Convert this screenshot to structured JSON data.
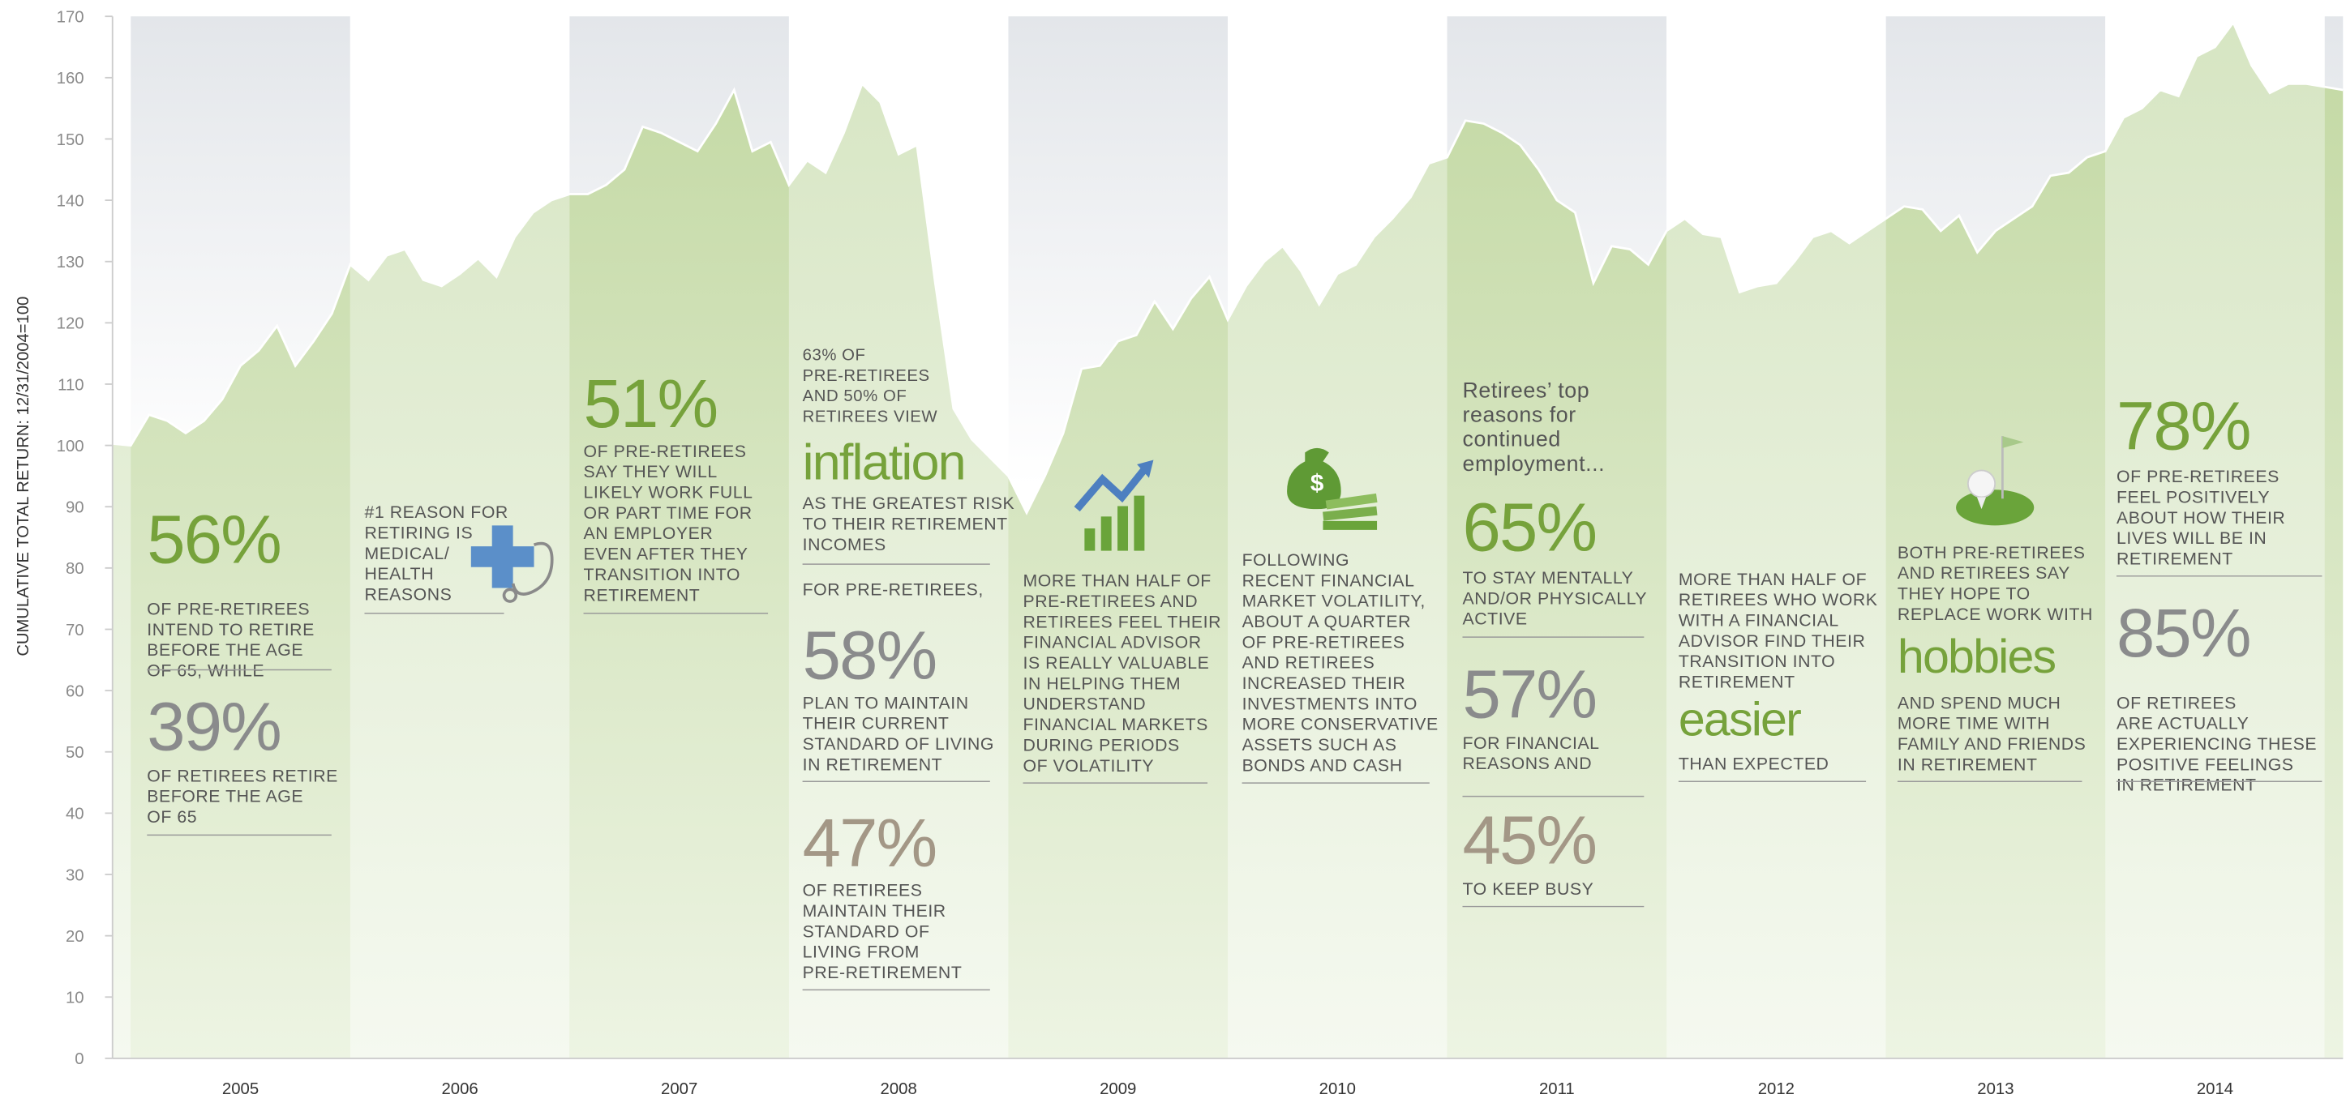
{
  "chart_data": {
    "type": "area",
    "y_label": "CUMULATIVE TOTAL RETURN: 12/31/2004=100",
    "categories": [
      null,
      null,
      null,
      null,
      null,
      null,
      null,
      "2005",
      null,
      null,
      null,
      null,
      null,
      null,
      null,
      null,
      null,
      null,
      null,
      "2006",
      null,
      null,
      null,
      null,
      null,
      null,
      null,
      null,
      null,
      null,
      null,
      "2007",
      null,
      null,
      null,
      null,
      null,
      null,
      null,
      null,
      null,
      null,
      null,
      "2008",
      null,
      null,
      null,
      null,
      null,
      null,
      null,
      null,
      null,
      null,
      null,
      "2009",
      null,
      null,
      null,
      null,
      null,
      null,
      null,
      null,
      null,
      null,
      null,
      "2010",
      null,
      null,
      null,
      null,
      null,
      null,
      null,
      null,
      null,
      null,
      null,
      "2011",
      null,
      null,
      null,
      null,
      null,
      null,
      null,
      null,
      null,
      null,
      null,
      "2012",
      null,
      null,
      null,
      null,
      null,
      null,
      null,
      null,
      null,
      null,
      null,
      "2013",
      null,
      null,
      null,
      null,
      null,
      null,
      null,
      null,
      null,
      null,
      null,
      "2014",
      null,
      null,
      null,
      null,
      null,
      null,
      null
    ],
    "values": [
      100.3,
      100,
      105,
      104,
      102,
      104,
      107.5,
      113,
      115.5,
      119.5,
      113,
      117,
      121.5,
      129.5,
      127,
      131,
      132,
      127,
      126,
      128,
      130.5,
      127.5,
      134,
      138,
      140,
      141,
      141,
      142.5,
      145,
      152,
      151,
      149.5,
      148,
      152.5,
      158,
      148,
      149.5,
      142.5,
      146.5,
      144.5,
      151,
      159,
      156,
      147.5,
      149,
      126.5,
      106,
      101,
      98,
      95,
      89,
      95,
      102,
      112.5,
      113,
      117,
      118,
      123.5,
      119,
      124,
      127.5,
      120.5,
      126,
      130,
      132.5,
      128.5,
      123,
      128,
      129.5,
      134,
      137,
      140.5,
      146,
      147,
      153,
      152.5,
      151,
      149,
      145,
      140,
      138,
      126.5,
      132.5,
      132,
      129.5,
      135,
      137,
      134.5,
      134,
      125,
      126,
      126.5,
      130,
      134,
      135,
      133,
      135,
      137,
      139,
      138.5,
      135,
      137.5,
      131.5,
      135,
      137,
      139,
      144,
      144.5,
      147,
      148,
      153.5,
      155,
      158,
      157,
      163.5,
      165,
      169,
      162,
      157.5,
      159,
      159,
      158.5,
      158
    ],
    "ylim": [
      0,
      170
    ],
    "yticks": [
      0,
      10,
      20,
      30,
      40,
      50,
      60,
      70,
      80,
      90,
      100,
      110,
      120,
      130,
      140,
      150,
      160,
      170
    ],
    "annotations": [
      [
        "56%"
      ],
      [
        "OF PRE-RETIREES",
        "INTEND TO RETIRE",
        "BEFORE THE AGE",
        "OF 65, WHILE"
      ],
      [
        "39%"
      ],
      [
        "OF RETIREES RETIRE",
        "BEFORE THE AGE",
        "OF 65"
      ],
      [
        "#1 REASON FOR",
        "RETIRING IS",
        "MEDICAL/",
        "HEALTH",
        "REASONS"
      ],
      [
        "51%"
      ],
      [
        "OF PRE-RETIREES",
        "SAY THEY WILL",
        "LIKELY WORK FULL",
        "OR PART TIME FOR",
        "AN EMPLOYER",
        "EVEN AFTER THEY",
        "TRANSITION INTO",
        "RETIREMENT"
      ],
      [
        "63% OF",
        "PRE-RETIREES",
        "AND 50% OF",
        "RETIREES VIEW"
      ],
      [
        "inflation"
      ],
      [
        "AS THE GREATEST RISK",
        "TO THEIR RETIREMENT",
        "INCOMES"
      ],
      [
        "FOR PRE-RETIREES,"
      ],
      [
        "58%"
      ],
      [
        "PLAN TO MAINTAIN",
        "THEIR CURRENT",
        "STANDARD OF LIVING",
        "IN RETIREMENT"
      ],
      [
        "47%"
      ],
      [
        "OF RETIREES",
        "MAINTAIN THEIR",
        "STANDARD OF",
        "LIVING FROM",
        "PRE-RETIREMENT"
      ],
      [
        "MORE THAN HALF OF",
        "PRE-RETIREES AND",
        "RETIREES FEEL THEIR",
        "FINANCIAL ADVISOR",
        "IS REALLY VALUABLE",
        "IN HELPING THEM",
        "UNDERSTAND",
        "FINANCIAL MARKETS",
        "DURING PERIODS",
        "OF VOLATILITY"
      ],
      [
        "FOLLOWING",
        "RECENT FINANCIAL",
        "MARKET VOLATILITY,",
        "ABOUT A QUARTER",
        "OF PRE-RETIREES",
        "AND RETIREES",
        "INCREASED THEIR",
        "INVESTMENTS INTO",
        "MORE CONSERVATIVE",
        "ASSETS SUCH AS",
        "BONDS AND CASH"
      ],
      [
        "Retirees’ top",
        "reasons for",
        "continued",
        "employment..."
      ],
      [
        "65%"
      ],
      [
        "TO STAY MENTALLY",
        "AND/OR PHYSICALLY",
        "ACTIVE"
      ],
      [
        "57%"
      ],
      [
        "FOR FINANCIAL",
        "REASONS AND"
      ],
      [
        "45%"
      ],
      [
        "TO KEEP BUSY"
      ],
      [
        "MORE THAN HALF OF",
        "RETIREES WHO WORK",
        "WITH A FINANCIAL",
        "ADVISOR FIND THEIR",
        "TRANSITION INTO",
        "RETIREMENT"
      ],
      [
        "easier"
      ],
      [
        "THAN EXPECTED"
      ],
      [
        "BOTH PRE-RETIREES",
        "AND RETIREES SAY",
        "THEY HOPE TO",
        "REPLACE WORK WITH"
      ],
      [
        "hobbies"
      ],
      [
        "AND SPEND MUCH",
        "MORE TIME WITH",
        "FAMILY AND FRIENDS",
        "IN RETIREMENT"
      ],
      [
        "78%"
      ],
      [
        "OF PRE-RETIREES",
        "FEEL POSITIVELY",
        "ABOUT HOW THEIR",
        "LIVES WILL BE IN",
        "RETIREMENT"
      ],
      [
        "85%"
      ],
      [
        "OF RETIREES",
        "ARE ACTUALLY",
        "EXPERIENCING THESE",
        "POSITIVE FEELINGS",
        "IN RETIREMENT"
      ]
    ]
  }
}
